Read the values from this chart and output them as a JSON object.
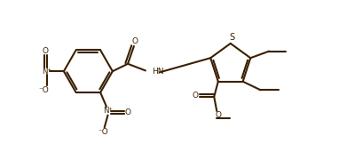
{
  "bg_color": "#ffffff",
  "line_color": "#3a2000",
  "line_width": 1.5,
  "figsize": [
    3.82,
    1.89
  ],
  "dpi": 100,
  "xlim": [
    0,
    10
  ],
  "ylim": [
    0,
    4.95
  ]
}
